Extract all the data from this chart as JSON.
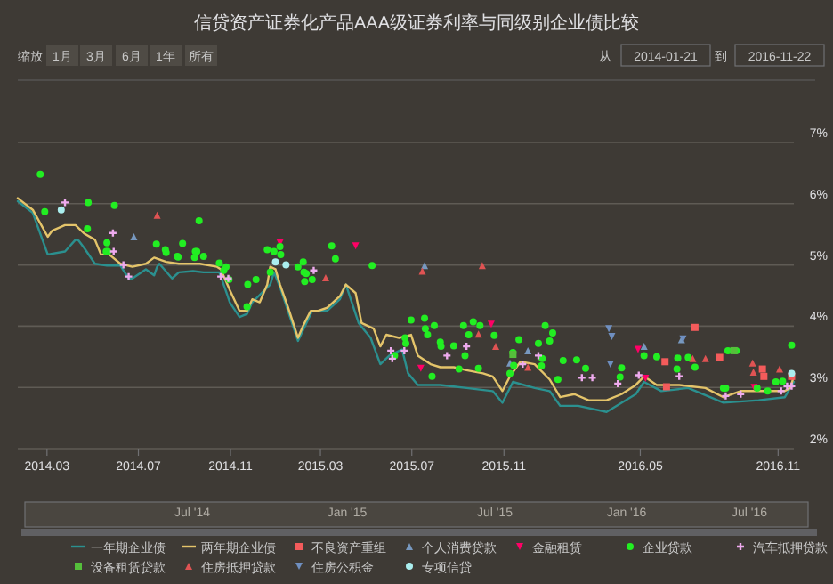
{
  "chart_data": {
    "type": "scatter",
    "title": "信贷资产证券化产品AAA级证券利率与同级别企业债比较",
    "annotations": [
      "缩放",
      "1月",
      "3月",
      "6月",
      "1年",
      "所有",
      "从",
      "2014-01-21",
      "到",
      "2016-11-22",
      "Jul '14",
      "Jan '15",
      "Jul '15",
      "Jan '16",
      "Jul '16"
    ],
    "xlim": [
      "2014-01-21",
      "2016-11-22"
    ],
    "xticks": [
      {
        "value": "2014-03-01",
        "label": "2014.03"
      },
      {
        "value": "2014-07-01",
        "label": "2014.07"
      },
      {
        "value": "2014-11-01",
        "label": "2014.11"
      },
      {
        "value": "2015-03-01",
        "label": "2015.03"
      },
      {
        "value": "2015-07-01",
        "label": "2015.07"
      },
      {
        "value": "2015-11-01",
        "label": "2015.11"
      },
      {
        "value": "2016-05-01",
        "label": "2016.05"
      },
      {
        "value": "2016-11-01",
        "label": "2016.11"
      }
    ],
    "ylim": [
      2,
      7
    ],
    "yticks": [
      {
        "value": 2,
        "label": "2%"
      },
      {
        "value": 3,
        "label": "3%"
      },
      {
        "value": 4,
        "label": "4%"
      },
      {
        "value": 5,
        "label": "5%"
      },
      {
        "value": 6,
        "label": "6%"
      },
      {
        "value": 7,
        "label": "7%"
      }
    ],
    "grid": "y",
    "legend": "bottom",
    "series": [
      {
        "name": "一年期企业债",
        "type": "line",
        "color": "#2b908f",
        "marker": "none",
        "x": [
          "2014-01-21",
          "2014-02-10",
          "2014-03-02",
          "2014-03-25",
          "2014-04-08",
          "2014-04-12",
          "2014-04-20",
          "2014-05-04",
          "2014-05-20",
          "2014-06-07",
          "2014-06-18",
          "2014-06-23",
          "2014-07-11",
          "2014-07-22",
          "2014-07-26",
          "2014-07-29",
          "2014-08-15",
          "2014-08-24",
          "2014-09-12",
          "2014-09-26",
          "2014-10-17",
          "2014-10-20",
          "2014-10-31",
          "2014-11-13",
          "2014-11-23",
          "2014-11-30",
          "2014-12-24",
          "2014-12-29",
          "2015-01-06",
          "2015-01-30",
          "2015-02-18",
          "2015-03-10",
          "2015-03-27",
          "2015-04-04",
          "2015-04-21",
          "2015-05-07",
          "2015-05-20",
          "2015-06-01",
          "2015-06-18",
          "2015-06-26",
          "2015-07-09",
          "2015-08-08",
          "2015-09-12",
          "2015-10-17",
          "2015-10-30",
          "2015-11-13",
          "2015-12-12",
          "2016-01-01",
          "2016-01-15",
          "2016-02-08",
          "2016-03-17",
          "2016-04-06",
          "2016-04-25",
          "2016-05-06",
          "2016-05-29",
          "2016-07-04",
          "2016-08-20",
          "2016-10-06",
          "2016-11-10",
          "2016-11-22"
        ],
        "values": [
          6.04,
          5.85,
          5.17,
          5.22,
          5.41,
          5.4,
          5.27,
          5.02,
          4.99,
          4.99,
          4.78,
          4.78,
          4.93,
          4.83,
          4.97,
          5.02,
          4.78,
          4.88,
          4.9,
          4.88,
          4.88,
          4.78,
          4.39,
          4.15,
          4.2,
          4.39,
          4.68,
          4.88,
          4.64,
          3.76,
          4.25,
          4.25,
          4.44,
          4.68,
          4.05,
          3.81,
          3.38,
          3.52,
          3.62,
          3.23,
          3.04,
          3.04,
          2.99,
          2.94,
          2.75,
          3.09,
          2.99,
          2.94,
          2.7,
          2.7,
          2.6,
          2.75,
          2.89,
          3.09,
          2.94,
          2.99,
          2.75,
          2.79,
          2.84,
          3.09
        ]
      },
      {
        "name": "两年期企业债",
        "type": "line",
        "color": "#e4c46a",
        "marker": "none",
        "x": [
          "2014-01-21",
          "2014-02-10",
          "2014-03-02",
          "2014-03-08",
          "2014-03-25",
          "2014-04-08",
          "2014-04-20",
          "2014-05-04",
          "2014-05-12",
          "2014-05-23",
          "2014-06-07",
          "2014-06-23",
          "2014-07-11",
          "2014-07-22",
          "2014-08-07",
          "2014-08-24",
          "2014-09-21",
          "2014-10-14",
          "2014-10-19",
          "2014-10-31",
          "2014-11-13",
          "2014-11-23",
          "2014-11-30",
          "2014-12-10",
          "2014-12-20",
          "2014-12-24",
          "2014-12-31",
          "2015-01-06",
          "2015-01-17",
          "2015-01-30",
          "2015-02-06",
          "2015-02-16",
          "2015-02-26",
          "2015-03-10",
          "2015-03-27",
          "2015-04-04",
          "2015-04-17",
          "2015-04-25",
          "2015-05-11",
          "2015-05-20",
          "2015-05-28",
          "2015-06-14",
          "2015-06-30",
          "2015-07-09",
          "2015-07-26",
          "2015-08-08",
          "2015-08-26",
          "2015-09-12",
          "2015-10-04",
          "2015-10-17",
          "2015-10-30",
          "2015-11-09",
          "2015-11-23",
          "2015-12-12",
          "2016-01-01",
          "2016-01-15",
          "2016-02-03",
          "2016-02-22",
          "2016-03-17",
          "2016-04-06",
          "2016-04-25",
          "2016-05-06",
          "2016-05-23",
          "2016-06-22",
          "2016-07-27",
          "2016-08-20",
          "2016-09-12",
          "2016-10-18",
          "2016-11-10",
          "2016-11-17",
          "2016-11-22"
        ],
        "values": [
          6.09,
          5.9,
          5.46,
          5.56,
          5.65,
          5.65,
          5.51,
          5.41,
          5.17,
          5.17,
          5.02,
          4.97,
          5.02,
          5.12,
          5.05,
          5.02,
          5.02,
          4.97,
          4.93,
          4.59,
          4.25,
          4.25,
          4.44,
          4.39,
          4.68,
          4.97,
          4.93,
          4.68,
          4.3,
          3.81,
          4.01,
          4.25,
          4.25,
          4.3,
          4.49,
          4.68,
          4.54,
          4.05,
          3.96,
          3.67,
          3.86,
          3.81,
          3.86,
          3.52,
          3.38,
          3.33,
          3.33,
          3.28,
          3.23,
          3.18,
          2.94,
          3.18,
          3.42,
          3.38,
          3.13,
          2.84,
          2.89,
          2.79,
          2.79,
          2.89,
          3.04,
          3.18,
          3.04,
          3.04,
          2.99,
          2.84,
          2.94,
          2.94,
          2.94,
          2.99,
          3.18
        ]
      },
      {
        "name": "不良资产重组",
        "type": "scatter",
        "color": "#f45b5b",
        "marker": "square",
        "x": [
          "2016-06-03",
          "2016-06-05",
          "2016-07-13",
          "2016-08-15",
          "2016-10-11",
          "2016-10-13",
          "2016-11-19"
        ],
        "values": [
          3.42,
          3.01,
          3.98,
          3.49,
          3.3,
          3.18,
          3.18
        ]
      },
      {
        "name": "个人消费贷款",
        "type": "scatter",
        "color": "#7798bf",
        "marker": "triangle",
        "x": [
          "2014-06-25",
          "2015-07-18",
          "2015-11-09",
          "2015-12-03",
          "2016-05-06",
          "2016-06-25"
        ],
        "values": [
          5.46,
          4.99,
          3.4,
          3.6,
          3.67,
          3.78
        ]
      },
      {
        "name": "金融租赁",
        "type": "scatter",
        "color": "#ff0066",
        "marker": "triangle-down",
        "x": [
          "2015-01-06",
          "2015-04-17",
          "2015-07-13",
          "2015-10-15",
          "2016-04-28",
          "2016-05-08",
          "2016-09-30"
        ],
        "values": [
          5.36,
          5.31,
          3.31,
          4.03,
          3.62,
          3.15,
          3.0
        ]
      },
      {
        "name": "企业贷款",
        "type": "scatter",
        "color": "#22ee22",
        "marker": "circle",
        "x": [
          "2014-02-20",
          "2014-02-26",
          "2014-04-25",
          "2014-04-24",
          "2014-05-30",
          "2014-05-20",
          "2014-05-19",
          "2014-05-21",
          "2014-07-25",
          "2014-08-06",
          "2014-08-07",
          "2014-08-22",
          "2014-08-23",
          "2014-08-29",
          "2014-09-20",
          "2014-09-15",
          "2014-09-17",
          "2014-09-14",
          "2014-09-26",
          "2014-10-17",
          "2014-10-26",
          "2014-10-23",
          "2014-10-30",
          "2014-11-24",
          "2014-12-05",
          "2014-11-23",
          "2014-12-20",
          "2014-12-29",
          "2015-01-06",
          "2015-01-07",
          "2014-12-24",
          "2015-01-30",
          "2015-02-06",
          "2015-02-07",
          "2015-02-10",
          "2015-02-08",
          "2015-02-18",
          "2015-03-16",
          "2015-03-21",
          "2015-05-09",
          "2015-06-30",
          "2015-07-18",
          "2015-07-19",
          "2015-07-31",
          "2015-06-22",
          "2015-06-23",
          "2015-06-08",
          "2015-07-22",
          "2015-08-08",
          "2015-08-09",
          "2015-08-26",
          "2015-09-08",
          "2015-09-15",
          "2015-09-21",
          "2015-09-30",
          "2015-09-10",
          "2015-09-28",
          "2015-10-19",
          "2015-09-02",
          "2015-07-28",
          "2015-11-13",
          "2015-11-21",
          "2015-11-09",
          "2015-11-14",
          "2015-12-17",
          "2015-12-26",
          "2016-01-01",
          "2016-01-05",
          "2015-12-22",
          "2015-12-21",
          "2016-01-12",
          "2016-01-19",
          "2016-02-06",
          "2016-02-18",
          "2016-04-06",
          "2016-04-04",
          "2016-05-06",
          "2016-05-23",
          "2016-06-19",
          "2016-06-20",
          "2016-07-04",
          "2016-07-13",
          "2016-08-26",
          "2016-09-06",
          "2016-08-20",
          "2016-08-23",
          "2016-10-04",
          "2016-10-18",
          "2016-10-29",
          "2016-11-07",
          "2016-11-19"
        ],
        "values": [
          6.48,
          5.87,
          6.02,
          5.59,
          5.97,
          5.36,
          5.22,
          5.22,
          5.34,
          5.25,
          5.2,
          5.14,
          5.13,
          5.35,
          5.72,
          5.22,
          5.22,
          5.12,
          5.14,
          5.03,
          4.97,
          4.91,
          4.76,
          4.68,
          4.76,
          4.32,
          5.25,
          5.22,
          5.3,
          5.17,
          4.88,
          4.97,
          5.05,
          4.88,
          4.86,
          4.73,
          4.76,
          5.31,
          5.1,
          4.99,
          4.1,
          4.13,
          3.96,
          4.01,
          3.81,
          3.72,
          3.52,
          3.86,
          3.74,
          3.67,
          3.68,
          4.01,
          3.86,
          4.07,
          4.01,
          3.52,
          3.31,
          3.85,
          3.3,
          3.18,
          3.57,
          3.78,
          3.23,
          3.36,
          3.72,
          4.01,
          3.76,
          3.89,
          3.47,
          3.35,
          3.13,
          3.44,
          3.45,
          3.31,
          3.32,
          3.17,
          3.52,
          3.5,
          3.3,
          3.48,
          3.49,
          3.33,
          3.6,
          3.6,
          2.99,
          2.99,
          2.99,
          2.94,
          3.09,
          3.1,
          3.69
        ]
      },
      {
        "name": "汽车抵押贷款",
        "type": "scatter",
        "color": "#eeaaee",
        "marker": "cross",
        "x": [
          "2014-03-25",
          "2014-05-28",
          "2014-05-29",
          "2014-06-11",
          "2014-06-18",
          "2014-10-19",
          "2014-10-29",
          "2015-02-20",
          "2015-06-03",
          "2015-06-05",
          "2015-06-21",
          "2015-08-17",
          "2015-09-12",
          "2015-11-26",
          "2015-12-17",
          "2016-02-13",
          "2016-02-27",
          "2016-04-01",
          "2016-04-29",
          "2016-06-22",
          "2016-08-23",
          "2016-09-12",
          "2016-11-05",
          "2016-11-13",
          "2016-11-19"
        ],
        "values": [
          6.02,
          5.52,
          5.22,
          5.0,
          4.81,
          4.81,
          4.78,
          4.91,
          3.6,
          3.47,
          3.6,
          3.52,
          3.67,
          3.38,
          3.52,
          3.16,
          3.16,
          3.06,
          3.2,
          3.18,
          2.86,
          2.89,
          2.94,
          3.02,
          3.02
        ]
      },
      {
        "name": "设备租赁贷款",
        "type": "scatter",
        "color": "#55bf3b",
        "marker": "square",
        "x": [
          "2015-11-13",
          "2016-09-03"
        ],
        "values": [
          3.54,
          3.6
        ]
      },
      {
        "name": "住房抵押贷款",
        "type": "scatter",
        "color": "#df5353",
        "marker": "triangle",
        "x": [
          "2014-07-26",
          "2015-03-08",
          "2015-07-15",
          "2015-09-28",
          "2015-10-03",
          "2015-10-21",
          "2015-12-03",
          "2016-07-10",
          "2016-07-27",
          "2016-09-28",
          "2016-09-29",
          "2016-11-03"
        ],
        "values": [
          5.81,
          4.79,
          4.9,
          3.87,
          4.99,
          3.67,
          3.33,
          3.47,
          3.47,
          3.4,
          3.25,
          3.3
        ]
      },
      {
        "name": "住房公积金",
        "type": "scatter",
        "color": "#6f8fc0",
        "marker": "triangle-down",
        "x": [
          "2016-03-20",
          "2016-03-24",
          "2016-03-22",
          "2016-06-27"
        ],
        "values": [
          3.96,
          3.83,
          3.38,
          3.79
        ]
      },
      {
        "name": "专项信贷",
        "type": "scatter",
        "color": "#aaeeee",
        "marker": "circle",
        "x": [
          "2014-03-20",
          "2014-12-31",
          "2015-01-14",
          "2016-11-19"
        ],
        "values": [
          5.9,
          5.05,
          5.0,
          3.23
        ]
      }
    ]
  }
}
